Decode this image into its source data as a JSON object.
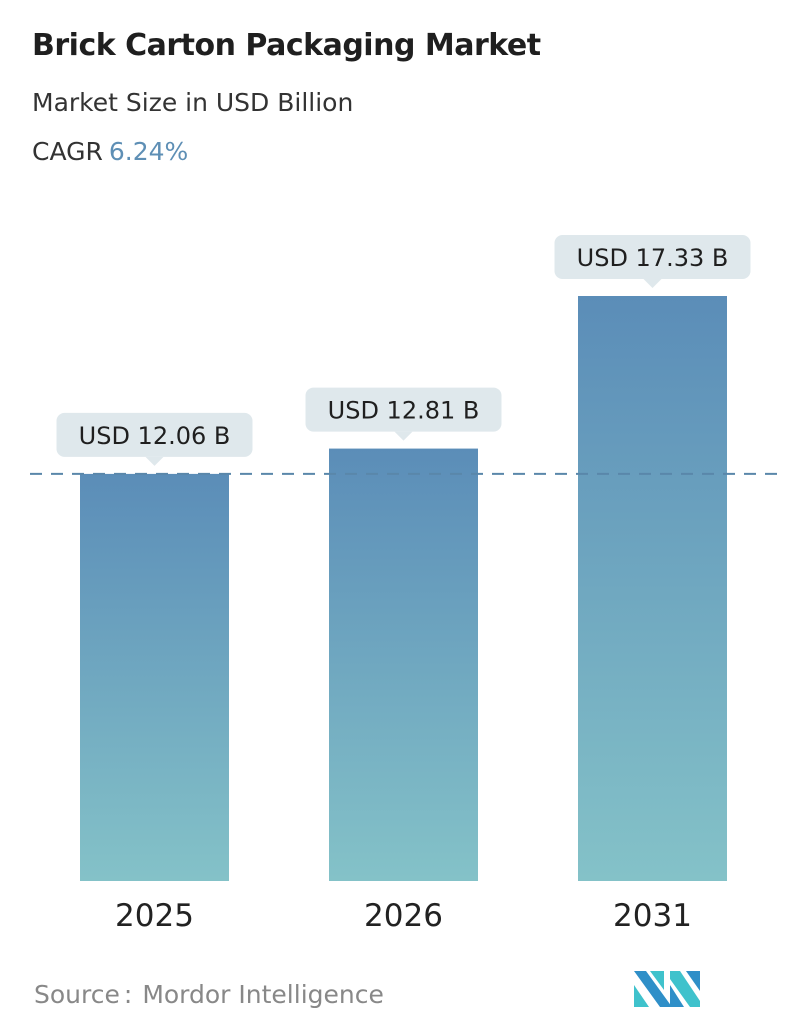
{
  "header": {
    "title": "Brick Carton Packaging Market",
    "subtitle": "Market Size in USD Billion",
    "cagr_label": "CAGR",
    "cagr_value": "6.24%"
  },
  "chart_data": {
    "type": "bar",
    "title": "Brick Carton Packaging Market",
    "ylabel": "Market Size in USD Billion",
    "categories": [
      "2025",
      "2026",
      "2031"
    ],
    "values": [
      12.06,
      12.81,
      17.33
    ],
    "data_labels": [
      "USD 12.06 B",
      "USD 12.81 B",
      "USD 17.33 B"
    ],
    "reference_line": 12.06,
    "ylim": [
      0,
      17.33
    ],
    "grid": false,
    "colors": {
      "bar_top": "#5b8db8",
      "bar_bottom": "#84c2c8",
      "label_bg": "#dfe8ec",
      "dashed_line": "#5a87aa",
      "accent": "#5e8fb5"
    }
  },
  "footer": {
    "source_label": "Source",
    "source_sep": ":",
    "source_value": "Mordor Intelligence",
    "logo_text": "Mordor Intelligence"
  }
}
